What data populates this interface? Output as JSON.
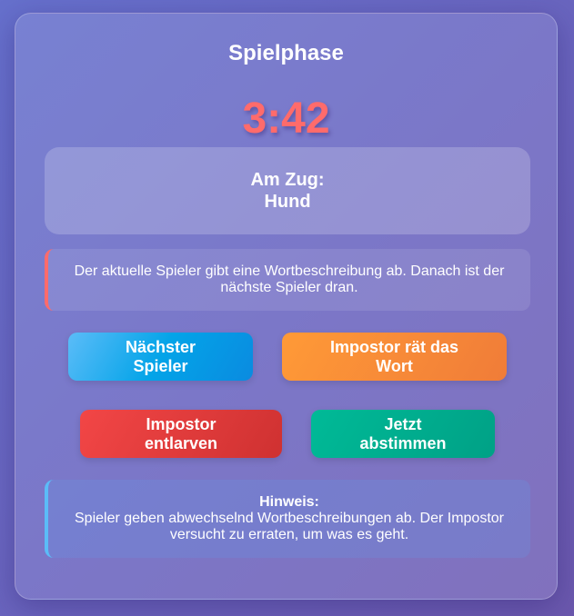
{
  "title": "Spielphase",
  "timer": "3:42",
  "turn": {
    "label": "Am Zug:",
    "player": "Hund"
  },
  "info": "Der aktuelle Spieler gibt eine Wortbeschreibung ab. Danach ist der nächste Spieler dran.",
  "buttons": {
    "next_player": "Nächster Spieler",
    "impostor_guess": "Impostor rät das Wort",
    "expose_impostor": "Impostor entlarven",
    "vote_now": "Jetzt abstimmen"
  },
  "hint": {
    "label": "Hinweis:",
    "text": "Spieler geben abwechselnd Wortbeschreibungen ab. Der Impostor versucht zu erraten, um was es geht."
  },
  "colors": {
    "timer": "#ff6b6b",
    "next": "#03a4e8",
    "guess": "#f7893a",
    "expose": "#e23c3c",
    "vote": "#00ae90"
  }
}
